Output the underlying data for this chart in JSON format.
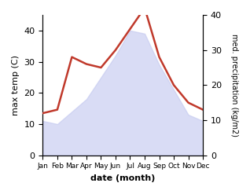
{
  "months": [
    "Jan",
    "Feb",
    "Mar",
    "Apr",
    "May",
    "Jun",
    "Jul",
    "Aug",
    "Sep",
    "Oct",
    "Nov",
    "Dec"
  ],
  "temp": [
    11,
    10,
    14,
    18,
    25,
    32,
    40,
    39,
    29,
    21,
    13,
    11
  ],
  "precip": [
    12,
    13,
    28,
    26,
    25,
    30,
    36,
    42,
    28,
    20,
    15,
    13
  ],
  "temp_fill_color": "#c5caf0",
  "temp_fill_alpha": 0.65,
  "precip_line_color": "#c0392b",
  "temp_ylim": [
    0,
    45
  ],
  "precip_ylim": [
    0,
    40
  ],
  "temp_yticks": [
    0,
    10,
    20,
    30,
    40
  ],
  "precip_yticks": [
    0,
    10,
    20,
    30,
    40
  ],
  "xlabel": "date (month)",
  "ylabel_left": "max temp (C)",
  "ylabel_right": "med. precipitation (kg/m2)",
  "figsize": [
    3.18,
    2.47
  ],
  "dpi": 100
}
